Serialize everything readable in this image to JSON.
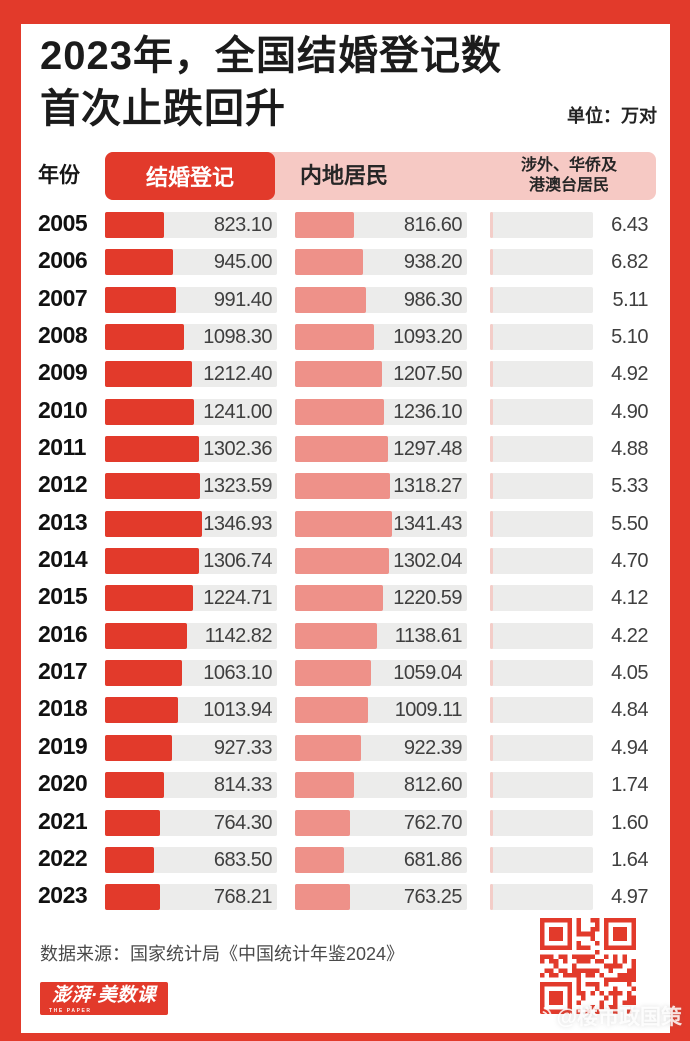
{
  "header": {
    "title_line1": "2023年，全国结婚登记数",
    "title_line2": "首次止跌回升",
    "unit": "单位：万对"
  },
  "columns": {
    "year": "年份",
    "marriage": "结婚登记",
    "mainland": "内地居民",
    "foreign_line1": "涉外、华侨及",
    "foreign_line2": "港澳台居民"
  },
  "chart_data": {
    "type": "bar",
    "title": "2023年，全国结婚登记数首次止跌回升",
    "unit": "万对",
    "orientation": "horizontal",
    "categories": [
      2005,
      2006,
      2007,
      2008,
      2009,
      2010,
      2011,
      2012,
      2013,
      2014,
      2015,
      2016,
      2017,
      2018,
      2019,
      2020,
      2021,
      2022,
      2023
    ],
    "series": [
      {
        "name": "结婚登记",
        "values": [
          823.1,
          945.0,
          991.4,
          1098.3,
          1212.4,
          1241.0,
          1302.36,
          1323.59,
          1346.93,
          1306.74,
          1224.71,
          1142.82,
          1063.1,
          1013.94,
          927.33,
          814.33,
          764.3,
          683.5,
          768.21
        ]
      },
      {
        "name": "内地居民",
        "values": [
          816.6,
          938.2,
          986.3,
          1093.2,
          1207.5,
          1236.1,
          1297.48,
          1318.27,
          1341.43,
          1302.04,
          1220.59,
          1138.61,
          1059.04,
          1009.11,
          922.39,
          812.6,
          762.7,
          681.86,
          763.25
        ]
      },
      {
        "name": "涉外、华侨及港澳台居民",
        "values": [
          6.43,
          6.82,
          5.11,
          5.1,
          4.92,
          4.9,
          4.88,
          5.33,
          5.5,
          4.7,
          4.12,
          4.22,
          4.05,
          4.84,
          4.94,
          1.74,
          1.6,
          1.64,
          4.97
        ]
      }
    ]
  },
  "footer": {
    "source": "数据来源：国家统计局《中国统计年鉴2024》",
    "logo_main": "澎湃·美数课",
    "logo_sub": "THE PAPER",
    "watermark": "@楼市政国策"
  },
  "colors": {
    "accent_red": "#e23a2b",
    "bar_pink": "#ee9189",
    "header_pink": "#f6c9c4",
    "track_gray": "#ececeb"
  }
}
